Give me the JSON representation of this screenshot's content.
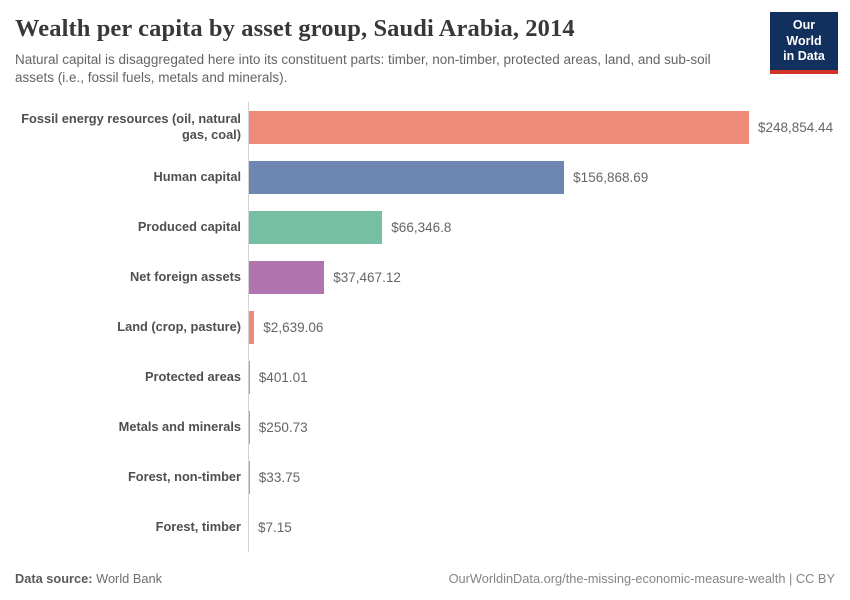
{
  "header": {
    "title": "Wealth per capita by asset group, Saudi Arabia, 2014",
    "subtitle": "Natural capital is disaggregated here into its constituent parts: timber, non-timber, protected areas, land, and sub-soil assets (i.e., fossil fuels, metals and minerals).",
    "logo": {
      "line1": "Our World",
      "line2": "in Data",
      "bg_color": "#12305E",
      "accent_color": "#D13327"
    }
  },
  "chart_data": {
    "type": "bar",
    "orientation": "horizontal",
    "title": "Wealth per capita by asset group, Saudi Arabia, 2014",
    "xlabel": "",
    "ylabel": "",
    "xlim": [
      0,
      248854.44
    ],
    "grid": false,
    "legend": "none",
    "unit": "$ per capita",
    "categories": [
      "Fossil energy resources (oil, natural gas, coal)",
      "Human capital",
      "Produced capital",
      "Net foreign assets",
      "Land (crop, pasture)",
      "Protected areas",
      "Metals and minerals",
      "Forest, non-timber",
      "Forest, timber"
    ],
    "values": [
      248854.44,
      156868.69,
      66346.8,
      37467.12,
      2639.06,
      401.01,
      250.73,
      33.75,
      7.15
    ],
    "value_labels": [
      "$248,854.44",
      "$156,868.69",
      "$66,346.8",
      "$37,467.12",
      "$2,639.06",
      "$401.01",
      "$250.73",
      "$33.75",
      "$7.15"
    ],
    "bar_colors": [
      "#ED8A78",
      "#6E87B2",
      "#76BFA3",
      "#B274AE",
      "#ED8A78",
      "#ED8A78",
      "#ED8A78",
      "#ED8A78",
      "#ED8A78"
    ],
    "axis_color": "#d3d3d3"
  },
  "footer": {
    "datasource_label": "Data source:",
    "datasource_value": "World Bank",
    "credit": "OurWorldinData.org/the-missing-economic-measure-wealth | CC BY"
  }
}
